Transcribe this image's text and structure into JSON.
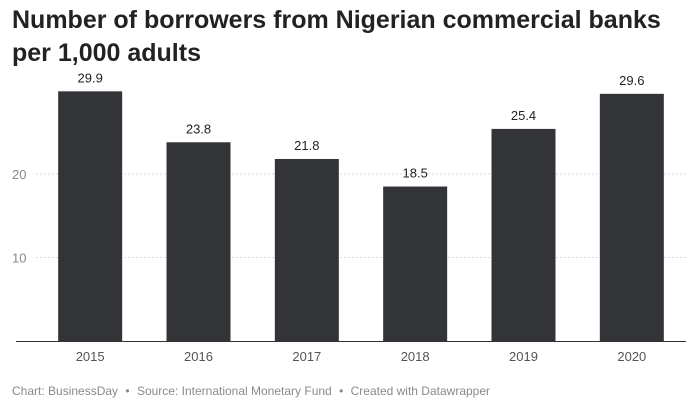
{
  "chart_data": {
    "type": "bar",
    "title": "Number of borrowers from Nigerian commercial banks per 1,000 adults",
    "categories": [
      "2015",
      "2016",
      "2017",
      "2018",
      "2019",
      "2020"
    ],
    "values": [
      29.9,
      23.8,
      21.8,
      18.5,
      25.4,
      29.6
    ],
    "value_labels": [
      "29.9",
      "23.8",
      "21.8",
      "18.5",
      "25.4",
      "29.6"
    ],
    "yticks": [
      10,
      20
    ],
    "ytick_labels": [
      "10",
      "20"
    ],
    "ylim": [
      0,
      30
    ],
    "xlabel": "",
    "ylabel": "",
    "grid": true,
    "bar_color": "#333438"
  },
  "footer": {
    "chart_credit": "Chart: BusinessDay",
    "source": "Source: International Monetary Fund",
    "created_with": "Created with Datawrapper",
    "separator": "•"
  }
}
